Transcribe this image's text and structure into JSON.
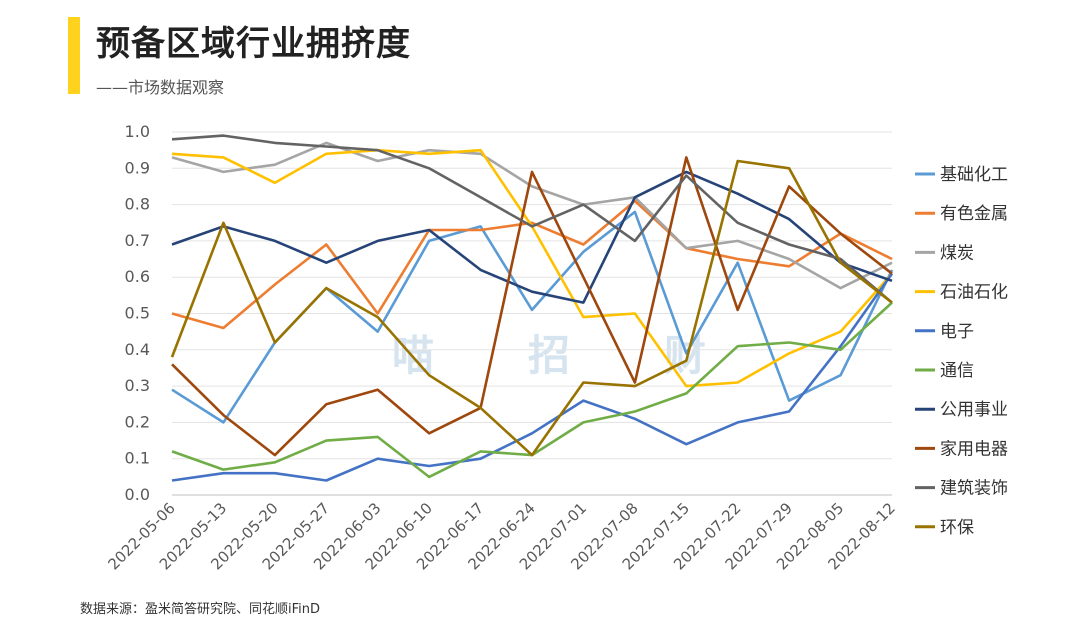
{
  "header": {
    "title": "预备区域行业拥挤度",
    "subtitle": "——市场数据观察",
    "accent_color": "#FFD21E"
  },
  "watermark": [
    "喵",
    "招",
    "财"
  ],
  "footer": {
    "source": "数据来源：盈米简答研究院、同花顺iFinD"
  },
  "chart_data": {
    "type": "line",
    "title": "",
    "xlabel": "",
    "ylabel": "",
    "ylim": [
      0,
      1.0
    ],
    "yticks": [
      "0.0",
      "0.1",
      "0.2",
      "0.3",
      "0.4",
      "0.5",
      "0.6",
      "0.7",
      "0.8",
      "0.9",
      "1.0"
    ],
    "grid": true,
    "legend_position": "right",
    "x": [
      "2022-05-06",
      "2022-05-13",
      "2022-05-20",
      "2022-05-27",
      "2022-06-03",
      "2022-06-10",
      "2022-06-17",
      "2022-06-24",
      "2022-07-01",
      "2022-07-08",
      "2022-07-15",
      "2022-07-22",
      "2022-07-29",
      "2022-08-05",
      "2022-08-12"
    ],
    "series": [
      {
        "name": "基础化工",
        "color": "#5B9BD5",
        "values": [
          0.29,
          0.2,
          0.42,
          0.57,
          0.45,
          0.7,
          0.74,
          0.51,
          0.67,
          0.78,
          0.39,
          0.64,
          0.26,
          0.33,
          0.62
        ]
      },
      {
        "name": "有色金属",
        "color": "#ED7D31",
        "values": [
          0.5,
          0.46,
          0.58,
          0.69,
          0.5,
          0.73,
          0.73,
          0.75,
          0.69,
          0.81,
          0.68,
          0.65,
          0.63,
          0.72,
          0.65
        ]
      },
      {
        "name": "煤炭",
        "color": "#A5A5A5",
        "values": [
          0.93,
          0.89,
          0.91,
          0.97,
          0.92,
          0.95,
          0.94,
          0.85,
          0.8,
          0.82,
          0.68,
          0.7,
          0.65,
          0.57,
          0.64
        ]
      },
      {
        "name": "石油石化",
        "color": "#FFC000",
        "values": [
          0.94,
          0.93,
          0.86,
          0.94,
          0.95,
          0.94,
          0.95,
          0.74,
          0.49,
          0.5,
          0.3,
          0.31,
          0.39,
          0.45,
          0.61
        ]
      },
      {
        "name": "电子",
        "color": "#4472C4",
        "values": [
          0.04,
          0.06,
          0.06,
          0.04,
          0.1,
          0.08,
          0.1,
          0.17,
          0.26,
          0.21,
          0.14,
          0.2,
          0.23,
          0.41,
          0.61
        ]
      },
      {
        "name": "通信",
        "color": "#70AD47",
        "values": [
          0.12,
          0.07,
          0.09,
          0.15,
          0.16,
          0.05,
          0.12,
          0.11,
          0.2,
          0.23,
          0.28,
          0.41,
          0.42,
          0.4,
          0.53
        ]
      },
      {
        "name": "公用事业",
        "color": "#264478",
        "values": [
          0.69,
          0.74,
          0.7,
          0.64,
          0.7,
          0.73,
          0.62,
          0.56,
          0.53,
          0.82,
          0.89,
          0.83,
          0.76,
          0.64,
          0.59
        ]
      },
      {
        "name": "家用电器",
        "color": "#9E480E",
        "values": [
          0.36,
          0.22,
          0.11,
          0.25,
          0.29,
          0.17,
          0.24,
          0.89,
          0.6,
          0.31,
          0.93,
          0.51,
          0.85,
          0.72,
          0.61
        ]
      },
      {
        "name": "建筑装饰",
        "color": "#636363",
        "values": [
          0.98,
          0.99,
          0.97,
          0.96,
          0.95,
          0.9,
          0.82,
          0.74,
          0.8,
          0.7,
          0.88,
          0.75,
          0.69,
          0.65,
          0.53
        ]
      },
      {
        "name": "环保",
        "color": "#997300",
        "values": [
          0.38,
          0.75,
          0.42,
          0.57,
          0.49,
          0.33,
          0.24,
          0.11,
          0.31,
          0.3,
          0.37,
          0.92,
          0.9,
          0.64,
          0.53
        ]
      }
    ]
  }
}
